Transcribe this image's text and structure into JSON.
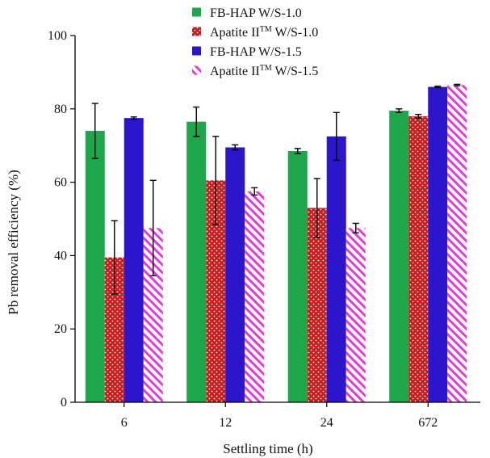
{
  "chart_data": {
    "type": "bar",
    "title": "",
    "xlabel": "Settling time (h)",
    "ylabel": "Pb removal efficiency (%)",
    "ylim": [
      0,
      100
    ],
    "yticks": [
      0,
      20,
      40,
      60,
      80,
      100
    ],
    "categories": [
      "6",
      "12",
      "24",
      "672"
    ],
    "legend_position": "top-center",
    "series": [
      {
        "name": "FB-HAP W/S-1.0",
        "name_main": "FB-HAP W/S-1.0",
        "name_sup": "",
        "name_tail": "",
        "color": "#1ea64b",
        "pattern": "solid",
        "values": [
          74,
          76.5,
          68.5,
          79.5
        ],
        "errors": [
          7.5,
          4,
          0.7,
          0.5
        ]
      },
      {
        "name": "Apatite II™ W/S-1.0",
        "name_main": "Apatite II",
        "name_sup": "TM",
        "name_tail": " W/S-1.0",
        "color": "#cc1b1b",
        "pattern": "dots",
        "values": [
          39.5,
          60.5,
          53,
          78
        ],
        "errors": [
          10,
          12,
          8,
          0.5
        ]
      },
      {
        "name": "FB-HAP W/S-1.5",
        "name_main": "FB-HAP W/S-1.5",
        "name_sup": "",
        "name_tail": "",
        "color": "#2b16cc",
        "pattern": "solid",
        "values": [
          77.5,
          69.5,
          72.5,
          86
        ],
        "errors": [
          0.3,
          0.7,
          6.5,
          0.2
        ]
      },
      {
        "name": "Apatite II™ W/S-1.5",
        "name_main": "Apatite II",
        "name_sup": "TM",
        "name_tail": " W/S-1.5",
        "color": "#e23bd6",
        "pattern": "hatch",
        "values": [
          47.5,
          57.5,
          47.5,
          86.5
        ],
        "errors": [
          13,
          1,
          1.3,
          0.2
        ]
      }
    ]
  }
}
